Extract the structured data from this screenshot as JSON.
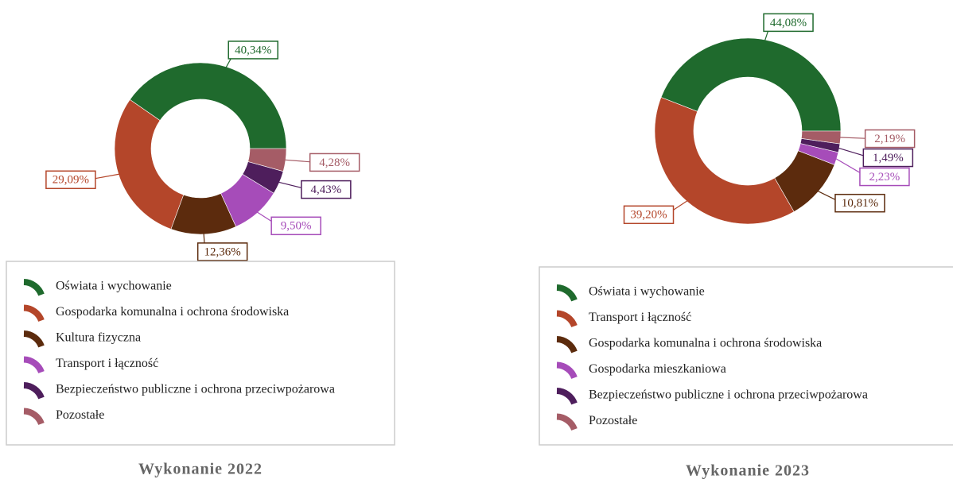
{
  "chart_data": [
    {
      "type": "donut",
      "title": "Wykonanie 2022",
      "categories": [
        "Oświata i wychowanie",
        "Gospodarka komunalna i ochrona środowiska",
        "Kultura fizyczna",
        "Transport i łączność",
        "Bezpieczeństwo publiczne i ochrona przeciwpożarowa",
        "Pozostałe"
      ],
      "values": [
        40.34,
        29.09,
        12.36,
        9.5,
        4.43,
        4.28
      ],
      "value_labels": [
        "40,34%",
        "29,09%",
        "12,36%",
        "9,50%",
        "4,43%",
        "4,28%"
      ],
      "colors": [
        "#1f6a2d",
        "#b4462a",
        "#5c2b0d",
        "#a64cb9",
        "#4e1e5c",
        "#a55c66"
      ]
    },
    {
      "type": "donut",
      "title": "Wykonanie 2023",
      "categories": [
        "Oświata i wychowanie",
        "Transport i łączność",
        "Gospodarka komunalna i ochrona środowiska",
        "Gospodarka mieszkaniowa",
        "Bezpieczeństwo publiczne i ochrona przeciwpożarowa",
        "Pozostałe"
      ],
      "values": [
        44.08,
        39.2,
        10.81,
        2.23,
        1.49,
        2.19
      ],
      "value_labels": [
        "44,08%",
        "39,20%",
        "10,81%",
        "2,23%",
        "1,49%",
        "2,19%"
      ],
      "colors": [
        "#1f6a2d",
        "#b4462a",
        "#5c2b0d",
        "#a64cb9",
        "#4e1e5c",
        "#a55c66"
      ]
    }
  ]
}
